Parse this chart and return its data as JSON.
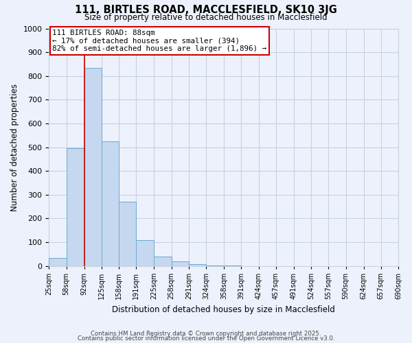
{
  "title": "111, BIRTLES ROAD, MACCLESFIELD, SK10 3JG",
  "subtitle": "Size of property relative to detached houses in Macclesfield",
  "xlabel": "Distribution of detached houses by size in Macclesfield",
  "ylabel": "Number of detached properties",
  "bins": [
    25,
    58,
    92,
    125,
    158,
    191,
    225,
    258,
    291,
    324,
    358,
    391,
    424,
    457,
    491,
    524,
    557,
    590,
    624,
    657,
    690
  ],
  "bin_labels": [
    "25sqm",
    "58sqm",
    "92sqm",
    "125sqm",
    "158sqm",
    "191sqm",
    "225sqm",
    "258sqm",
    "291sqm",
    "324sqm",
    "358sqm",
    "391sqm",
    "424sqm",
    "457sqm",
    "491sqm",
    "524sqm",
    "557sqm",
    "590sqm",
    "624sqm",
    "657sqm",
    "690sqm"
  ],
  "values": [
    35,
    495,
    835,
    525,
    270,
    110,
    40,
    20,
    8,
    3,
    2,
    0,
    0,
    0,
    0,
    0,
    0,
    0,
    0,
    0
  ],
  "bar_color": "#c5d8f0",
  "bar_edge_color": "#6aaad4",
  "vline_x": 92,
  "vline_color": "#cc0000",
  "ylim": [
    0,
    1000
  ],
  "yticks": [
    0,
    100,
    200,
    300,
    400,
    500,
    600,
    700,
    800,
    900,
    1000
  ],
  "annotation_line1": "111 BIRTLES ROAD: 88sqm",
  "annotation_line2": "← 17% of detached houses are smaller (394)",
  "annotation_line3": "82% of semi-detached houses are larger (1,896) →",
  "annotation_box_color": "#ffffff",
  "annotation_box_edge": "#cc0000",
  "bg_color": "#edf1fb",
  "grid_color": "#c8d0e0",
  "footer1": "Contains HM Land Registry data © Crown copyright and database right 2025.",
  "footer2": "Contains public sector information licensed under the Open Government Licence v3.0."
}
